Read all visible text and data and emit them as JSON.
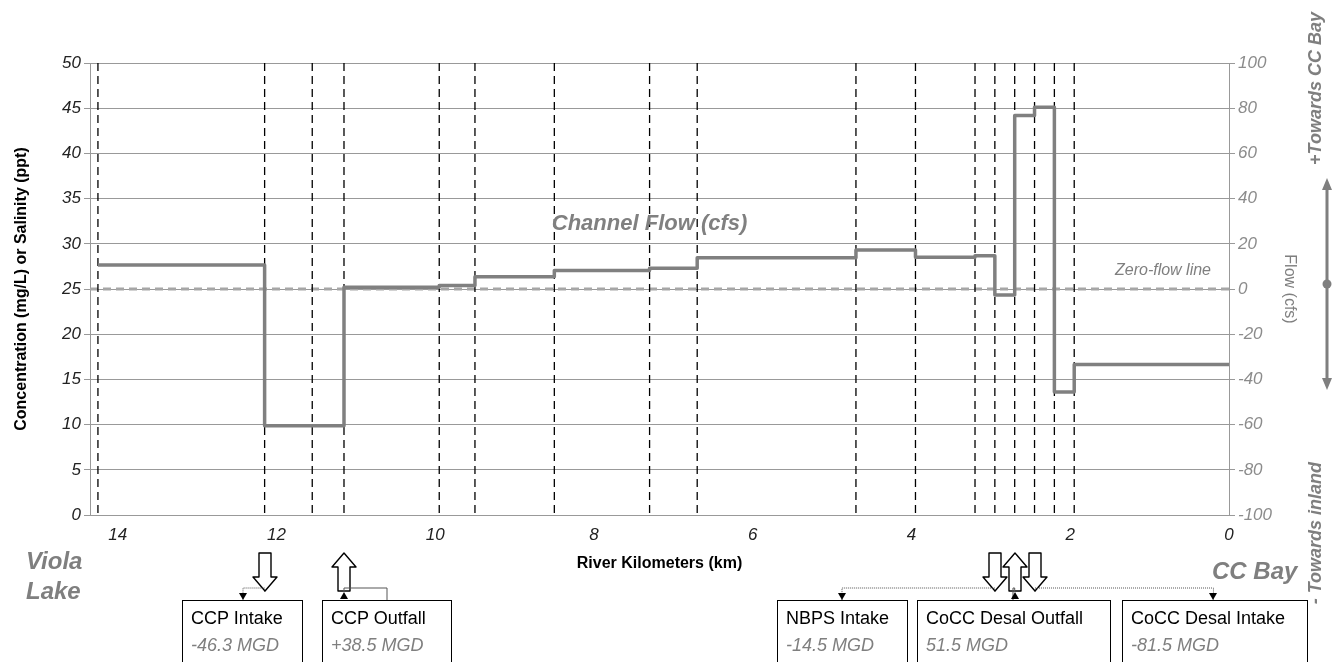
{
  "chart_data": {
    "type": "step",
    "xlabel": "River Kilometers (km)",
    "ylabel": "Concentration (mg/L) or Salinity (ppt)",
    "y2label": "Flow (cfs)",
    "xlim": [
      14.35,
      0
    ],
    "xticks": [
      14,
      12,
      10,
      8,
      6,
      4,
      2,
      0
    ],
    "ylim": [
      0,
      50
    ],
    "yticks": [
      0,
      5,
      10,
      15,
      20,
      25,
      30,
      35,
      40,
      45,
      50
    ],
    "y2lim": [
      -100,
      100
    ],
    "y2ticks": [
      -100,
      -80,
      -60,
      -40,
      -20,
      0,
      20,
      40,
      60,
      80,
      100
    ],
    "grid": "y",
    "series": [
      {
        "name": "Channel Flow (cfs)",
        "color": "#808080",
        "axis": "y2",
        "x": [
          14.25,
          12.15,
          11.15,
          9.95,
          9.5,
          8.5,
          7.3,
          6.7,
          4.7,
          3.95,
          3.2,
          2.95,
          2.7,
          2.45,
          2.2,
          1.95,
          0
        ],
        "values": [
          10.6,
          -60.5,
          0.8,
          1.5,
          5.4,
          8.2,
          9.2,
          13.8,
          17.3,
          14.1,
          14.7,
          -2.7,
          76.8,
          80.4,
          -45.6,
          -33.4,
          -33.4
        ]
      }
    ],
    "ref_lines": [
      {
        "axis": "y2",
        "value": 0,
        "label": "Zero-flow line",
        "color": "#a6a6a6",
        "line_style": "dashed"
      },
      {
        "axis": "x",
        "value": 14.25,
        "color": "#000000",
        "line_style": "dashed"
      },
      {
        "axis": "x",
        "value": 12.15,
        "color": "#000000",
        "line_style": "dashed"
      },
      {
        "axis": "x",
        "value": 11.55,
        "color": "#000000",
        "line_style": "dashed"
      },
      {
        "axis": "x",
        "value": 11.15,
        "color": "#000000",
        "line_style": "dashed"
      },
      {
        "axis": "x",
        "value": 9.95,
        "color": "#000000",
        "line_style": "dashed"
      },
      {
        "axis": "x",
        "value": 9.5,
        "color": "#000000",
        "line_style": "dashed"
      },
      {
        "axis": "x",
        "value": 8.5,
        "color": "#000000",
        "line_style": "dashed"
      },
      {
        "axis": "x",
        "value": 7.3,
        "color": "#000000",
        "line_style": "dashed"
      },
      {
        "axis": "x",
        "value": 6.7,
        "color": "#000000",
        "line_style": "dashed"
      },
      {
        "axis": "x",
        "value": 4.7,
        "color": "#000000",
        "line_style": "dashed"
      },
      {
        "axis": "x",
        "value": 3.95,
        "color": "#000000",
        "line_style": "dashed"
      },
      {
        "axis": "x",
        "value": 3.2,
        "color": "#000000",
        "line_style": "dashed"
      },
      {
        "axis": "x",
        "value": 2.95,
        "color": "#000000",
        "line_style": "dashed"
      },
      {
        "axis": "x",
        "value": 2.7,
        "color": "#000000",
        "line_style": "dashed"
      },
      {
        "axis": "x",
        "value": 2.45,
        "color": "#000000",
        "line_style": "dashed"
      },
      {
        "axis": "x",
        "value": 2.2,
        "color": "#000000",
        "line_style": "dashed"
      },
      {
        "axis": "x",
        "value": 1.95,
        "color": "#000000",
        "line_style": "dashed"
      }
    ],
    "annotations": [
      "Viola Lake",
      "CC Bay",
      "+Towards CC Bay",
      "- Towards inland",
      {
        "text": "CCP Intake\n-46.3 MGD",
        "x": 12.15
      },
      {
        "text": "CCP Outfall\n+38.5 MGD",
        "x": 11.15
      },
      {
        "text": "NBPS Intake\n-14.5 MGD",
        "x": 2.95
      },
      {
        "text": "CoCC Desal Outfall\n51.5 MGD",
        "x": 2.7
      },
      {
        "text": "CoCC Desal Intake\n-81.5 MGD",
        "x": 2.45
      }
    ]
  }
}
